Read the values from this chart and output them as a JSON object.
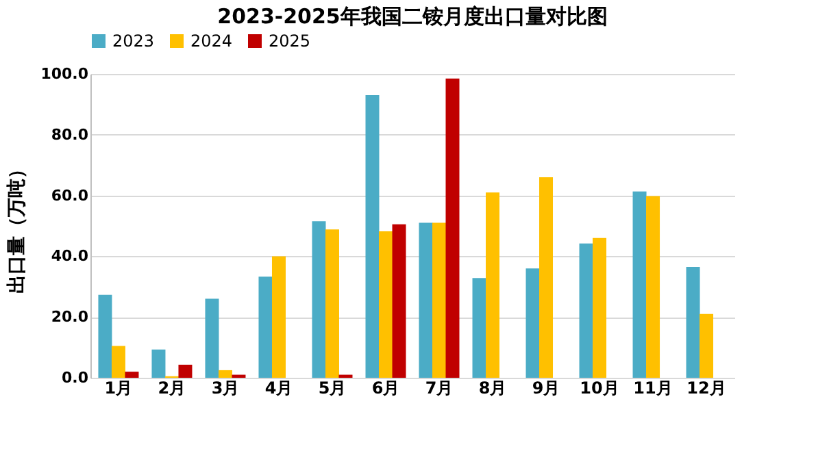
{
  "chart_data": {
    "type": "bar",
    "title": "2023-2025年我国二铵月度出口量对比图",
    "ylabel": "出口量（万吨）",
    "categories": [
      "1月",
      "2月",
      "3月",
      "4月",
      "5月",
      "6月",
      "7月",
      "8月",
      "9月",
      "10月",
      "11月",
      "12月"
    ],
    "series": [
      {
        "name": "2023",
        "color": "#4bacc6",
        "values": [
          27.3,
          9.3,
          26.0,
          33.3,
          51.5,
          93.0,
          51.0,
          32.8,
          36.0,
          44.2,
          61.3,
          36.5
        ]
      },
      {
        "name": "2024",
        "color": "#ffc000",
        "values": [
          10.5,
          0.5,
          2.5,
          40.0,
          48.8,
          48.2,
          51.0,
          61.0,
          66.0,
          46.0,
          59.8,
          21.0
        ]
      },
      {
        "name": "2025",
        "color": "#c00000",
        "values": [
          2.0,
          4.3,
          1.0,
          null,
          1.0,
          50.5,
          98.5,
          null,
          null,
          null,
          null,
          null
        ]
      }
    ],
    "ylim": [
      0,
      100
    ],
    "yticks": [
      {
        "value": 0,
        "label": "0.0"
      },
      {
        "value": 20,
        "label": "20.0"
      },
      {
        "value": 40,
        "label": "40.0"
      },
      {
        "value": 60,
        "label": "60.0"
      },
      {
        "value": 80,
        "label": "80.0"
      },
      {
        "value": 100,
        "label": "100.0"
      }
    ],
    "grid": "y",
    "legend": "top"
  }
}
